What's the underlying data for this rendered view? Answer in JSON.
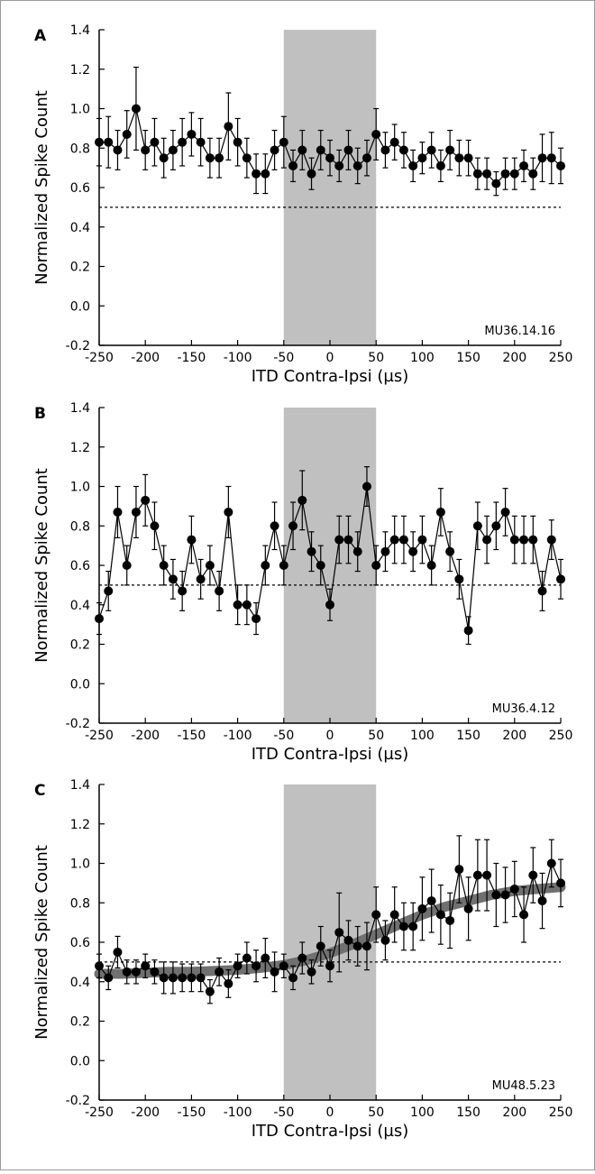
{
  "chart_data": [
    {
      "panel": "A",
      "type": "line",
      "annotation": "MU36.14.16",
      "xlabel": "ITD Contra-Ipsi (µs)",
      "ylabel": "Normalized Spike Count",
      "xlim": [
        -250,
        250
      ],
      "ylim": [
        -0.2,
        1.4
      ],
      "xticks": [
        -250,
        -200,
        -150,
        -100,
        -50,
        0,
        50,
        100,
        150,
        200,
        250
      ],
      "xtick_labels": [
        "-250",
        "-200",
        "-150",
        "-100",
        "-50",
        "0",
        "50",
        "100",
        "150",
        "200",
        "250"
      ],
      "yticks": [
        -0.2,
        0,
        0.2,
        0.4,
        0.6,
        0.8,
        1.0,
        1.2,
        1.4
      ],
      "ytick_labels": [
        "-0.2",
        "0.0",
        "0.2",
        "0.4",
        "0.6",
        "0.8",
        "1.0",
        "1.2",
        "1.4"
      ],
      "shaded_region": [
        -50,
        50
      ],
      "reference_line": 0.5,
      "x": [
        -250,
        -240,
        -230,
        -220,
        -210,
        -200,
        -190,
        -180,
        -170,
        -160,
        -150,
        -140,
        -130,
        -120,
        -110,
        -100,
        -90,
        -80,
        -70,
        -60,
        -50,
        -40,
        -30,
        -20,
        -10,
        0,
        10,
        20,
        30,
        40,
        50,
        60,
        70,
        80,
        90,
        100,
        110,
        120,
        130,
        140,
        150,
        160,
        170,
        180,
        190,
        200,
        210,
        220,
        230,
        240,
        250
      ],
      "y": [
        0.83,
        0.83,
        0.79,
        0.87,
        1.0,
        0.79,
        0.83,
        0.75,
        0.79,
        0.83,
        0.87,
        0.83,
        0.75,
        0.75,
        0.91,
        0.83,
        0.75,
        0.67,
        0.67,
        0.79,
        0.83,
        0.71,
        0.79,
        0.67,
        0.79,
        0.75,
        0.71,
        0.79,
        0.71,
        0.75,
        0.87,
        0.79,
        0.83,
        0.79,
        0.71,
        0.75,
        0.79,
        0.71,
        0.79,
        0.75,
        0.75,
        0.67,
        0.67,
        0.62,
        0.67,
        0.67,
        0.71,
        0.67,
        0.75,
        0.75,
        0.71
      ],
      "err": [
        0.12,
        0.13,
        0.1,
        0.12,
        0.21,
        0.1,
        0.12,
        0.1,
        0.1,
        0.12,
        0.11,
        0.12,
        0.1,
        0.1,
        0.17,
        0.12,
        0.1,
        0.1,
        0.1,
        0.1,
        0.13,
        0.08,
        0.1,
        0.08,
        0.1,
        0.09,
        0.08,
        0.1,
        0.09,
        0.09,
        0.13,
        0.09,
        0.09,
        0.09,
        0.08,
        0.08,
        0.09,
        0.08,
        0.1,
        0.09,
        0.09,
        0.08,
        0.08,
        0.06,
        0.08,
        0.08,
        0.08,
        0.08,
        0.12,
        0.13,
        0.09
      ],
      "fit": null
    },
    {
      "panel": "B",
      "type": "line",
      "annotation": "MU36.4.12",
      "xlabel": "ITD Contra-Ipsi (µs)",
      "ylabel": "Normalized Spike Count",
      "xlim": [
        -250,
        250
      ],
      "ylim": [
        -0.2,
        1.4
      ],
      "xticks": [
        -250,
        -200,
        -150,
        -100,
        -50,
        0,
        50,
        100,
        150,
        200,
        250
      ],
      "xtick_labels": [
        "-250",
        "-200",
        "-150",
        "-100",
        "-50",
        "0",
        "50",
        "100",
        "150",
        "200",
        "250"
      ],
      "yticks": [
        -0.2,
        0,
        0.2,
        0.4,
        0.6,
        0.8,
        1.0,
        1.2,
        1.4
      ],
      "ytick_labels": [
        "-0.2",
        "0.0",
        "0.2",
        "0.4",
        "0.6",
        "0.8",
        "1.0",
        "1.2",
        "1.4"
      ],
      "shaded_region": [
        -50,
        50
      ],
      "reference_line": 0.5,
      "x": [
        -250,
        -240,
        -230,
        -220,
        -210,
        -200,
        -190,
        -180,
        -170,
        -160,
        -150,
        -140,
        -130,
        -120,
        -110,
        -100,
        -90,
        -80,
        -70,
        -60,
        -50,
        -40,
        -30,
        -20,
        -10,
        0,
        10,
        20,
        30,
        40,
        50,
        60,
        70,
        80,
        90,
        100,
        110,
        120,
        130,
        140,
        150,
        160,
        170,
        180,
        190,
        200,
        210,
        220,
        230,
        240,
        250
      ],
      "y": [
        0.33,
        0.47,
        0.87,
        0.6,
        0.87,
        0.93,
        0.8,
        0.6,
        0.53,
        0.47,
        0.73,
        0.53,
        0.6,
        0.47,
        0.87,
        0.4,
        0.4,
        0.33,
        0.6,
        0.8,
        0.6,
        0.8,
        0.93,
        0.67,
        0.6,
        0.4,
        0.73,
        0.73,
        0.67,
        1.0,
        0.6,
        0.67,
        0.73,
        0.73,
        0.67,
        0.73,
        0.6,
        0.87,
        0.67,
        0.53,
        0.27,
        0.8,
        0.73,
        0.8,
        0.87,
        0.73,
        0.73,
        0.73,
        0.47,
        0.73,
        0.53
      ],
      "err": [
        0.08,
        0.1,
        0.13,
        0.1,
        0.13,
        0.13,
        0.12,
        0.1,
        0.1,
        0.1,
        0.12,
        0.1,
        0.1,
        0.1,
        0.13,
        0.1,
        0.1,
        0.08,
        0.1,
        0.12,
        0.1,
        0.12,
        0.15,
        0.1,
        0.1,
        0.08,
        0.12,
        0.12,
        0.1,
        0.1,
        0.1,
        0.1,
        0.12,
        0.12,
        0.1,
        0.12,
        0.1,
        0.12,
        0.1,
        0.1,
        0.07,
        0.12,
        0.12,
        0.12,
        0.12,
        0.12,
        0.12,
        0.12,
        0.1,
        0.1,
        0.1
      ],
      "fit": null
    },
    {
      "panel": "C",
      "type": "line",
      "annotation": "MU48.5.23",
      "xlabel": "ITD Contra-Ipsi (µs)",
      "ylabel": "Normalized Spike Count",
      "xlim": [
        -250,
        250
      ],
      "ylim": [
        -0.2,
        1.4
      ],
      "xticks": [
        -250,
        -200,
        -150,
        -100,
        -50,
        0,
        50,
        100,
        150,
        200,
        250
      ],
      "xtick_labels": [
        "-250",
        "-200",
        "-150",
        "-100",
        "-50",
        "0",
        "50",
        "100",
        "150",
        "200",
        "250"
      ],
      "yticks": [
        -0.2,
        0,
        0.2,
        0.4,
        0.6,
        0.8,
        1.0,
        1.2,
        1.4
      ],
      "ytick_labels": [
        "-0.2",
        "0.0",
        "0.2",
        "0.4",
        "0.6",
        "0.8",
        "1.0",
        "1.2",
        "1.4"
      ],
      "shaded_region": [
        -50,
        50
      ],
      "reference_line": 0.5,
      "x": [
        -250,
        -240,
        -230,
        -220,
        -210,
        -200,
        -190,
        -180,
        -170,
        -160,
        -150,
        -140,
        -130,
        -120,
        -110,
        -100,
        -90,
        -80,
        -70,
        -60,
        -50,
        -40,
        -30,
        -20,
        -10,
        0,
        10,
        20,
        30,
        40,
        50,
        60,
        70,
        80,
        90,
        100,
        110,
        120,
        130,
        140,
        150,
        160,
        170,
        180,
        190,
        200,
        210,
        220,
        230,
        240,
        250
      ],
      "y": [
        0.48,
        0.42,
        0.55,
        0.45,
        0.45,
        0.48,
        0.45,
        0.42,
        0.42,
        0.42,
        0.42,
        0.42,
        0.35,
        0.45,
        0.39,
        0.48,
        0.52,
        0.48,
        0.52,
        0.45,
        0.48,
        0.42,
        0.52,
        0.45,
        0.58,
        0.48,
        0.65,
        0.61,
        0.58,
        0.58,
        0.74,
        0.61,
        0.74,
        0.68,
        0.68,
        0.77,
        0.81,
        0.74,
        0.71,
        0.97,
        0.77,
        0.94,
        0.94,
        0.84,
        0.84,
        0.87,
        0.74,
        0.94,
        0.81,
        1.0,
        0.9
      ],
      "err": [
        0.06,
        0.06,
        0.08,
        0.06,
        0.06,
        0.06,
        0.06,
        0.08,
        0.08,
        0.07,
        0.07,
        0.07,
        0.06,
        0.07,
        0.07,
        0.06,
        0.08,
        0.08,
        0.1,
        0.1,
        0.06,
        0.06,
        0.08,
        0.06,
        0.1,
        0.08,
        0.2,
        0.1,
        0.1,
        0.12,
        0.14,
        0.1,
        0.14,
        0.12,
        0.12,
        0.16,
        0.16,
        0.15,
        0.14,
        0.17,
        0.16,
        0.18,
        0.18,
        0.16,
        0.14,
        0.14,
        0.14,
        0.14,
        0.14,
        0.12,
        0.12
      ],
      "fit": {
        "x": [
          -250,
          -225,
          -200,
          -175,
          -150,
          -125,
          -100,
          -75,
          -50,
          -25,
          0,
          25,
          50,
          75,
          100,
          125,
          150,
          175,
          200,
          225,
          250
        ],
        "y": [
          0.44,
          0.44,
          0.445,
          0.45,
          0.45,
          0.455,
          0.46,
          0.47,
          0.485,
          0.51,
          0.545,
          0.59,
          0.64,
          0.69,
          0.74,
          0.78,
          0.81,
          0.84,
          0.86,
          0.87,
          0.88
        ]
      }
    }
  ]
}
